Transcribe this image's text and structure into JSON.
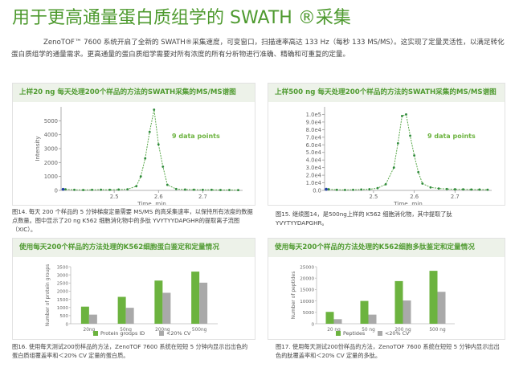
{
  "page": {
    "title": "用于更高通量蛋白质组学的 SWATH ®采集",
    "intro": "ZenoTOF™ 7600 系统开启了全新的 SWATH®采集速度，可变窗口，扫描速率高达 133 Hz（每秒 133 MS/MS）。这实现了定量灵活性，以满足转化蛋白质组学的通量需求。更高通量的蛋白质组学需要对所有浓度的所有分析物进行准确、精确和可重复的定量。"
  },
  "panels": [
    {
      "header": "上样20 ng 每天处理200个样品的方法的SWATH采集的MS/MS谱图",
      "caption": "图14. 每天 200 个样品的 5 分钟梯度定量需要 MS/MS 的高采集速率，以保持所有浓度的数据点数量。图中显示了20 ng K562 细胞消化物中的多肽 YVYTYYDAPGHR的提取离子流图（XIC）。"
    },
    {
      "header": "上样500 ng 每天处理200个样品的方法的SWATH采集的MS/MS谱图",
      "caption": "图15. 继续图14，是500ng上样的 K562 细胞消化物，其中提取了肽 YVYTYYDAPGHR。"
    },
    {
      "header": "使用每天200个样品的方法处理的K562细胞蛋白鉴定和定量情况",
      "caption": "图16. 使用每天测试200份样品的方法，ZenoTOF 7600 系统在短短 5 分钟内显示出出色的蛋白质组覆盖率和＜20% CV 定量的蛋白质。"
    },
    {
      "header": "使用每天200个样品的方法处理的K562细胞多肽鉴定和定量情况",
      "caption": "图17. 使用每天测试200份样品的方法，ZenoTOF 7600 系统在短短 5 分钟内显示出出色的肽覆盖率和＜20% CV 定量的多肽。"
    }
  ],
  "chart_data": [
    {
      "type": "line",
      "ylabel": "Intensity",
      "xlabel": "Time, min",
      "xlim": [
        2.38,
        2.79
      ],
      "ylim": [
        0,
        6000
      ],
      "xticks": [
        "2.5",
        "2.6",
        "2.7"
      ],
      "yticks": [
        "0",
        "1000",
        "2000",
        "3000",
        "4000",
        "5000"
      ],
      "annotation": "9 data points",
      "x": [
        2.39,
        2.41,
        2.43,
        2.45,
        2.47,
        2.49,
        2.51,
        2.53,
        2.55,
        2.56,
        2.57,
        2.58,
        2.59,
        2.6,
        2.61,
        2.62,
        2.64,
        2.66,
        2.68,
        2.7,
        2.72,
        2.74,
        2.76,
        2.78
      ],
      "y": [
        80,
        40,
        30,
        40,
        50,
        40,
        60,
        80,
        300,
        1000,
        2300,
        4200,
        5800,
        3300,
        1700,
        400,
        100,
        60,
        50,
        40,
        40,
        30,
        30,
        20
      ]
    },
    {
      "type": "line",
      "xlabel": "Time, min",
      "xlim": [
        2.38,
        2.79
      ],
      "ylim": [
        0,
        110000.0
      ],
      "xticks": [
        "2.5",
        "2.6",
        "2.7"
      ],
      "yticks": [
        "0.0",
        "1.0e4",
        "2.0e4",
        "3.0e4",
        "4.0e4",
        "5.0e4",
        "6.0e4",
        "7.0e4",
        "8.0e4",
        "9.0e4",
        "1.0e5"
      ],
      "annotation": "9 data points",
      "x": [
        2.39,
        2.41,
        2.43,
        2.45,
        2.47,
        2.49,
        2.51,
        2.53,
        2.55,
        2.56,
        2.57,
        2.58,
        2.59,
        2.6,
        2.61,
        2.62,
        2.64,
        2.66,
        2.68,
        2.7,
        2.72,
        2.74,
        2.76,
        2.78
      ],
      "y": [
        1500,
        800,
        600,
        800,
        1200,
        1500,
        3000,
        8000,
        30000,
        62000,
        98000,
        100000,
        72000,
        46000,
        24000,
        9000,
        4000,
        2500,
        1800,
        1500,
        1400,
        1200,
        1100,
        900
      ]
    },
    {
      "type": "bar",
      "ylabel": "Number of protein groups",
      "categories": [
        "20ng",
        "50ng",
        "200ng",
        "500ng"
      ],
      "ylim": [
        0,
        3500
      ],
      "yticks": [
        "0",
        "500",
        "1000",
        "1500",
        "2000",
        "2500",
        "3000",
        "3500"
      ],
      "series": [
        {
          "name": "Protein groups ID",
          "color": "#6cb33f",
          "values": [
            1050,
            1650,
            2650,
            3200
          ]
        },
        {
          "name": "<20% CV",
          "color": "#a9a9a9",
          "values": [
            560,
            980,
            1900,
            2520
          ]
        }
      ]
    },
    {
      "type": "bar",
      "ylabel": "Number of peptides",
      "categories": [
        "20 ng",
        "50 ng",
        "200 ng",
        "500 ng"
      ],
      "ylim": [
        0,
        25000
      ],
      "yticks": [
        "0",
        "5000",
        "10000",
        "15000",
        "20000",
        "25000"
      ],
      "series": [
        {
          "name": "Peptides",
          "color": "#6cb33f",
          "values": [
            5200,
            10000,
            18700,
            23200
          ]
        },
        {
          "name": "<20% CV",
          "color": "#a9a9a9",
          "values": [
            2000,
            4000,
            10200,
            14000
          ]
        }
      ]
    }
  ]
}
